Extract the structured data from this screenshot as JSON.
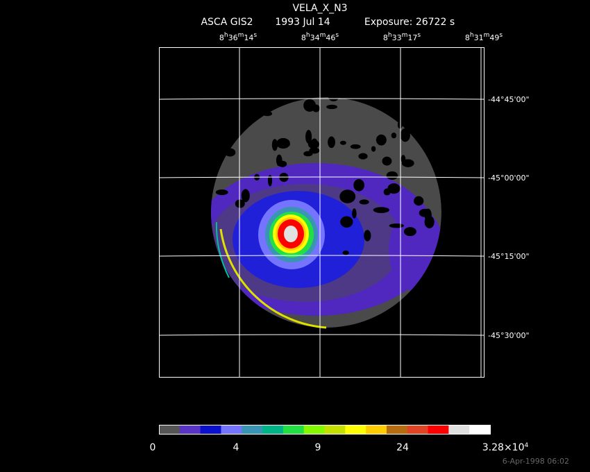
{
  "header": {
    "title": "VELA_X_N3",
    "instrument": "ASCA GIS2",
    "date": "1993 Jul 14",
    "exposure": "Exposure: 26722 s"
  },
  "ra_labels": [
    [
      "8",
      "h",
      "36",
      "m",
      "14",
      "s"
    ],
    [
      "8",
      "h",
      "34",
      "m",
      "46",
      "s"
    ],
    [
      "8",
      "h",
      "33",
      "m",
      "17",
      "s"
    ],
    [
      "8",
      "h",
      "31",
      "m",
      "49",
      "s"
    ]
  ],
  "dec_labels": [
    "-44°45'00\"",
    "-45°00'00\"",
    "-45°15'00\"",
    "-45°30'00\""
  ],
  "colorbar": {
    "colors": [
      "#555555",
      "#5a34c4",
      "#0a10cc",
      "#7474ff",
      "#3a94b4",
      "#00b488",
      "#22e044",
      "#84f800",
      "#c4e000",
      "#ffff00",
      "#ffcc00",
      "#b86c10",
      "#e04424",
      "#ff0000",
      "#e0e0e0",
      "#ffffff"
    ],
    "labels": [
      [
        "0"
      ],
      [
        "4"
      ],
      [
        "9"
      ],
      [
        "24"
      ],
      [
        "3.28×10",
        "4"
      ]
    ]
  },
  "timestamp": "6-Apr-1998 06:02"
}
